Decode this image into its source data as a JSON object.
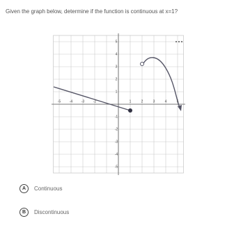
{
  "question": "Given the graph below, determine if the function is continuous at x=1?",
  "graph": {
    "x_labels": [
      "-5",
      "-4",
      "-3",
      "-2",
      "1",
      "2",
      "3",
      "4",
      "5"
    ],
    "y_labels": [
      "5",
      "4",
      "3",
      "2",
      "1",
      "-1",
      "-2",
      "-3",
      "-4",
      "-5"
    ]
  },
  "options": [
    {
      "letter": "A",
      "text": "Continuous"
    },
    {
      "letter": "B",
      "text": "Discontinuous"
    }
  ]
}
